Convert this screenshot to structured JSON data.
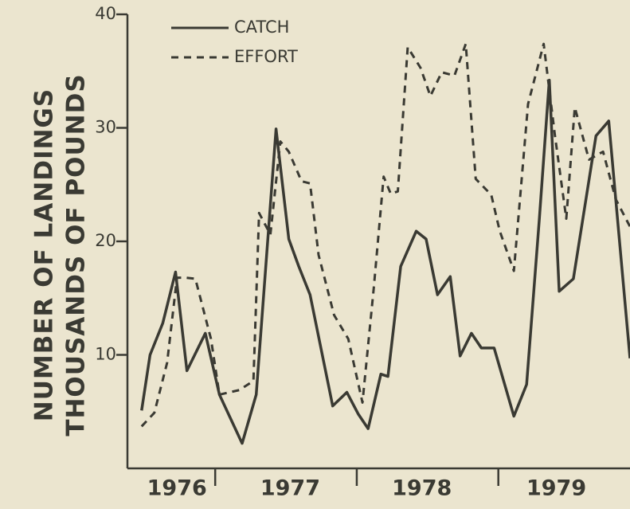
{
  "chart_data": {
    "type": "line",
    "y_label_lines": [
      "NUMBER OF LANDINGS",
      "THOUSANDS OF POUNDS"
    ],
    "ylim": [
      0,
      40
    ],
    "yticks": [
      10,
      20,
      30,
      40
    ],
    "xlim": [
      1976.38,
      1979.93
    ],
    "xticks": [
      {
        "value": 1976.73,
        "label": "1976"
      },
      {
        "value": 1977.53,
        "label": "1977"
      },
      {
        "value": 1978.46,
        "label": "1978"
      },
      {
        "value": 1979.41,
        "label": "1979"
      }
    ],
    "year_boundaries": [
      1977,
      1978,
      1979
    ],
    "series": [
      {
        "name": "CATCH",
        "color": "#3a3a33",
        "dash": "solid",
        "x": [
          1976.48,
          1976.54,
          1976.63,
          1976.72,
          1976.8,
          1976.93,
          1977.03,
          1977.19,
          1977.29,
          1977.43,
          1977.52,
          1977.59,
          1977.67,
          1977.83,
          1977.93,
          1978.01,
          1978.08,
          1978.17,
          1978.22,
          1978.31,
          1978.42,
          1978.49,
          1978.57,
          1978.66,
          1978.73,
          1978.81,
          1978.88,
          1978.97,
          1979.11,
          1979.2,
          1979.29,
          1979.36,
          1979.43,
          1979.53,
          1979.69,
          1979.78,
          1979.93
        ],
        "values": [
          5.1,
          10,
          12.8,
          17.3,
          8.6,
          11.9,
          6.5,
          2.2,
          6.5,
          29.9,
          20.2,
          17.8,
          15.3,
          5.5,
          6.7,
          4.8,
          3.5,
          8.3,
          8.1,
          17.8,
          20.9,
          20.2,
          15.3,
          16.9,
          9.9,
          11.9,
          10.6,
          10.6,
          4.6,
          7.4,
          22,
          34.2,
          15.6,
          16.7,
          29.3,
          30.6,
          9.7
        ]
      },
      {
        "name": "EFFORT",
        "color": "#3a3a33",
        "dash": "dashed",
        "x": [
          1976.48,
          1976.57,
          1976.66,
          1976.73,
          1976.79,
          1976.86,
          1976.97,
          1977.03,
          1977.17,
          1977.27,
          1977.31,
          1977.39,
          1977.46,
          1977.52,
          1977.61,
          1977.67,
          1977.73,
          1977.84,
          1977.94,
          1978.04,
          1978.12,
          1978.19,
          1978.24,
          1978.29,
          1978.36,
          1978.45,
          1978.52,
          1978.6,
          1978.69,
          1978.77,
          1978.84,
          1978.95,
          1979.01,
          1979.11,
          1979.21,
          1979.32,
          1979.4,
          1979.48,
          1979.54,
          1979.64,
          1979.74,
          1979.83,
          1979.93
        ],
        "values": [
          3.7,
          4.9,
          9.3,
          16.8,
          16.8,
          16.7,
          11.4,
          6.5,
          6.9,
          7.7,
          22.5,
          20.6,
          28.8,
          27.9,
          25.3,
          25.1,
          18.8,
          13.5,
          11.4,
          5.8,
          15.9,
          25.7,
          24.2,
          24.4,
          37.1,
          35.3,
          32.8,
          34.9,
          34.6,
          37.4,
          25.5,
          24.1,
          20.9,
          17.4,
          32.1,
          37.4,
          29.3,
          22,
          31.8,
          27.2,
          27.9,
          23.7,
          21.3
        ]
      }
    ]
  }
}
